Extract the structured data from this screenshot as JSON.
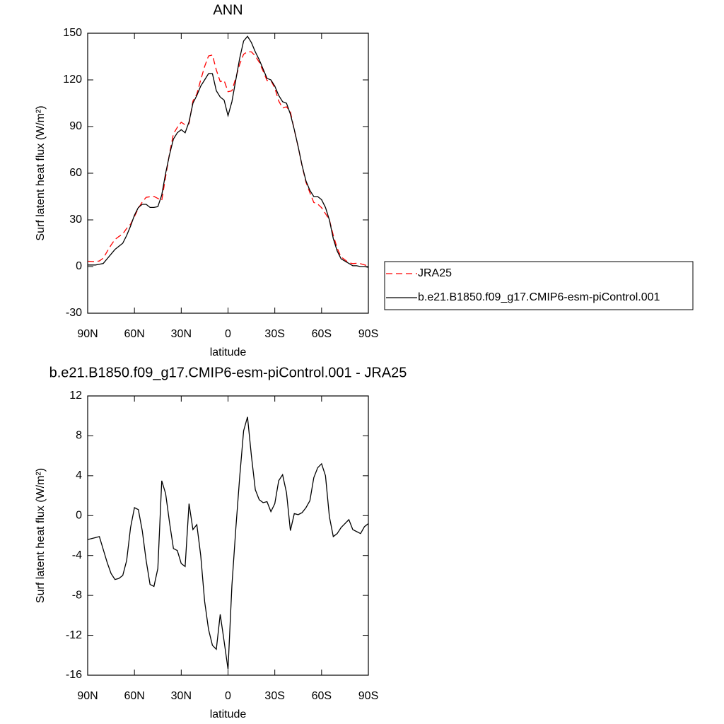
{
  "chart_data": [
    {
      "type": "line",
      "title": "ANN",
      "xlabel": "latitude",
      "ylabel": "Surf latent heat flux (W/m²)",
      "x": [
        90,
        87.5,
        85,
        82.5,
        80,
        77.5,
        75,
        72.5,
        70,
        67.5,
        65,
        62.5,
        60,
        57.5,
        55,
        52.5,
        50,
        47.5,
        45,
        42.5,
        40,
        37.5,
        35,
        32.5,
        30,
        27.5,
        25,
        22.5,
        20,
        17.5,
        15,
        12.5,
        10,
        7.5,
        5,
        2.5,
        0,
        -2.5,
        -5,
        -7.5,
        -10,
        -12.5,
        -15,
        -17.5,
        -20,
        -22.5,
        -25,
        -27.5,
        -30,
        -32.5,
        -35,
        -37.5,
        -40,
        -42.5,
        -45,
        -47.5,
        -50,
        -52.5,
        -55,
        -57.5,
        -60,
        -62.5,
        -65,
        -67.5,
        -70,
        -72.5,
        -75,
        -77.5,
        -80,
        -82.5,
        -85,
        -87.5,
        -90
      ],
      "xlim": [
        90,
        -90
      ],
      "xticks": [
        {
          "value": 90,
          "label": "90N"
        },
        {
          "value": 60,
          "label": "60N"
        },
        {
          "value": 30,
          "label": "30N"
        },
        0,
        {
          "value": -30,
          "label": "30S"
        },
        {
          "value": -60,
          "label": "60S"
        },
        {
          "value": -90,
          "label": "90S"
        }
      ],
      "ylim": [
        -30,
        150
      ],
      "yticks": [
        -30,
        0,
        30,
        60,
        90,
        120,
        150
      ],
      "series": [
        {
          "name": "JRA25",
          "color": "#ff0000",
          "dash": true,
          "values": [
            3.4,
            3.3,
            3.2,
            3.6,
            5.4,
            9.7,
            13.8,
            17.4,
            19.3,
            21,
            24.5,
            27.2,
            32.2,
            37.4,
            41.5,
            44.5,
            44.9,
            45.1,
            43.8,
            42.5,
            57.8,
            72.7,
            85.3,
            89.5,
            92.8,
            91.1,
            91.8,
            106.4,
            110.9,
            120,
            128.6,
            135.4,
            136,
            126.4,
            118.9,
            119.6,
            112.4,
            113,
            121.3,
            130.1,
            136.5,
            138.1,
            138,
            135.4,
            131.4,
            125.7,
            119.6,
            119.6,
            114.8,
            106.5,
            101.9,
            102.7,
            99.5,
            87.8,
            76.9,
            64.7,
            54.2,
            47.5,
            41.2,
            40.2,
            37.8,
            34,
            30.1,
            20.1,
            11.8,
            6.2,
            4.3,
            2.4,
            1.9,
            2.1,
            1.8,
            1.1,
            0.3
          ]
        },
        {
          "name": "b.e21.B1850.f09_g17.CMIP6-esm-piControl.001",
          "color": "#000000",
          "dash": false,
          "values": [
            1,
            1,
            1,
            1.5,
            2,
            5,
            8,
            11,
            13,
            15,
            20,
            26,
            33,
            38,
            40,
            40,
            38,
            38,
            38.5,
            46,
            60,
            72,
            82,
            86,
            88,
            86,
            93,
            105,
            110,
            116,
            120,
            124,
            124,
            113,
            109,
            107,
            97,
            106,
            120,
            134,
            145,
            148,
            144,
            138,
            133,
            127,
            121,
            120,
            116,
            110,
            106,
            105,
            98,
            88,
            77,
            65,
            55,
            49,
            45,
            45,
            43,
            38,
            30,
            18,
            10,
            5,
            3.5,
            2,
            0.5,
            0.5,
            0,
            0,
            -0.5
          ]
        }
      ]
    },
    {
      "type": "line",
      "title": "b.e21.B1850.f09_g17.CMIP6-esm-piControl.001 - JRA25",
      "xlabel": "latitude",
      "ylabel": "Surf latent heat flux (W/m²)",
      "x": [
        90,
        87.5,
        85,
        82.5,
        80,
        77.5,
        75,
        72.5,
        70,
        67.5,
        65,
        62.5,
        60,
        57.5,
        55,
        52.5,
        50,
        47.5,
        45,
        42.5,
        40,
        37.5,
        35,
        32.5,
        30,
        27.5,
        25,
        22.5,
        20,
        17.5,
        15,
        12.5,
        10,
        7.5,
        5,
        2.5,
        0,
        -2.5,
        -5,
        -7.5,
        -10,
        -12.5,
        -15,
        -17.5,
        -20,
        -22.5,
        -25,
        -27.5,
        -30,
        -32.5,
        -35,
        -37.5,
        -40,
        -42.5,
        -45,
        -47.5,
        -50,
        -52.5,
        -55,
        -57.5,
        -60,
        -62.5,
        -65,
        -67.5,
        -70,
        -72.5,
        -75,
        -77.5,
        -80,
        -82.5,
        -85,
        -87.5,
        -90
      ],
      "xlim": [
        90,
        -90
      ],
      "xticks": [
        {
          "value": 90,
          "label": "90N"
        },
        {
          "value": 60,
          "label": "60N"
        },
        {
          "value": 30,
          "label": "30N"
        },
        0,
        {
          "value": -30,
          "label": "30S"
        },
        {
          "value": -60,
          "label": "60S"
        },
        {
          "value": -90,
          "label": "90S"
        }
      ],
      "ylim": [
        -16,
        12
      ],
      "yticks": [
        -16,
        -12,
        -8,
        -4,
        0,
        4,
        8,
        12
      ],
      "color": "#000000",
      "values": [
        -2.4,
        -2.3,
        -2.2,
        -2.1,
        -3.4,
        -4.7,
        -5.8,
        -6.4,
        -6.3,
        -6,
        -4.5,
        -1.2,
        0.8,
        0.6,
        -1.5,
        -4.5,
        -6.9,
        -7.1,
        -5.3,
        3.5,
        2.2,
        -0.7,
        -3.3,
        -3.5,
        -4.8,
        -5.1,
        1.2,
        -1.4,
        -0.9,
        -4,
        -8.6,
        -11.4,
        -13,
        -13.4,
        -9.9,
        -12.6,
        -15.4,
        -7,
        -1.3,
        3.9,
        8.5,
        9.9,
        6,
        2.6,
        1.6,
        1.3,
        1.4,
        0.4,
        1.2,
        3.5,
        4.1,
        2.3,
        -1.5,
        0.2,
        0.1,
        0.3,
        0.8,
        1.5,
        3.8,
        4.8,
        5.2,
        4,
        -0.1,
        -2.1,
        -1.8,
        -1.2,
        -0.8,
        -0.4,
        -1.4,
        -1.6,
        -1.8,
        -1.1,
        -0.8
      ]
    }
  ]
}
